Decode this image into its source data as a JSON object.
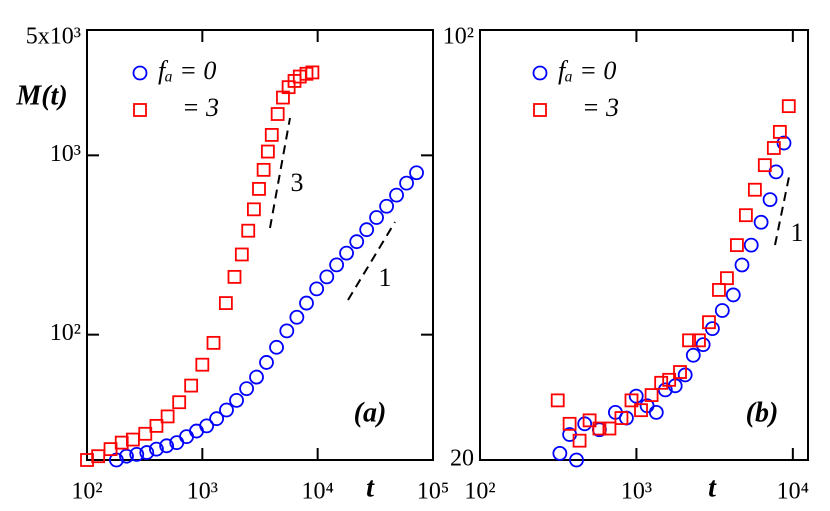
{
  "chart_data": [
    {
      "type": "scatter",
      "panel_label": "(a)",
      "xlabel": "t",
      "ylabel": "M(t)",
      "xscale": "log",
      "yscale": "log",
      "xlim": [
        100,
        100000
      ],
      "ylim": [
        20,
        5000
      ],
      "xticks": [
        {
          "value": 100,
          "label": "10²"
        },
        {
          "value": 1000,
          "label": "10³"
        },
        {
          "value": 10000,
          "label": "10⁴"
        },
        {
          "value": 100000,
          "label": "10⁵"
        }
      ],
      "yticks": [
        {
          "value": 100,
          "label": "10²"
        },
        {
          "value": 1000,
          "label": "10³"
        },
        {
          "value": 5000,
          "label": "5x10³"
        }
      ],
      "annotations": [
        "3",
        "1"
      ],
      "series": [
        {
          "name": "fₐ = 0",
          "color": "#0000ff",
          "marker": "circle",
          "x": [
            180,
            220,
            270,
            330,
            400,
            490,
            600,
            730,
            890,
            1090,
            1330,
            1620,
            1980,
            2420,
            2950,
            3600,
            4400,
            5400,
            6600,
            8000,
            9800,
            12000,
            14600,
            17800,
            21800,
            26600,
            32400,
            39600,
            48300,
            59000,
            72000
          ],
          "values": [
            20,
            21,
            21.5,
            22,
            23,
            24,
            25,
            27,
            29,
            31,
            34,
            38,
            43,
            50,
            58,
            70,
            85,
            105,
            125,
            150,
            180,
            210,
            245,
            285,
            330,
            385,
            450,
            520,
            600,
            700,
            800
          ]
        },
        {
          "name": "= 3",
          "color": "#ff0000",
          "marker": "square",
          "x": [
            100,
            125,
            160,
            200,
            250,
            320,
            400,
            500,
            630,
            800,
            1000,
            1250,
            1600,
            1900,
            2200,
            2500,
            2800,
            3100,
            3400,
            3700,
            4000,
            4500,
            5000,
            5600,
            6300,
            7000,
            8000,
            9000
          ],
          "values": [
            20,
            21,
            23,
            25,
            26,
            28,
            31,
            35,
            42,
            52,
            68,
            90,
            150,
            210,
            280,
            380,
            500,
            650,
            830,
            1050,
            1300,
            1700,
            2100,
            2400,
            2600,
            2750,
            2850,
            2900
          ]
        }
      ]
    },
    {
      "type": "scatter",
      "panel_label": "(b)",
      "xlabel": "t",
      "xscale": "log",
      "yscale": "log",
      "xlim": [
        100,
        12500
      ],
      "ylim": [
        20,
        100
      ],
      "xticks": [
        {
          "value": 100,
          "label": "10²"
        },
        {
          "value": 1000,
          "label": "10³"
        },
        {
          "value": 10000,
          "label": "10⁴"
        }
      ],
      "yticks": [
        20,
        {
          "value": 100,
          "label": "10²"
        }
      ],
      "annotations": [
        "1"
      ],
      "series": [
        {
          "name": "fₐ = 0",
          "color": "#0000ff",
          "marker": "circle",
          "x": [
            324,
            374,
            414,
            467,
            580,
            734,
            863,
            997,
            1170,
            1340,
            1530,
            1770,
            2050,
            2310,
            2670,
            3060,
            3540,
            4160,
            4730,
            5420,
            6270,
            7150,
            7810,
            8780
          ],
          "values": [
            20.5,
            22.0,
            20.0,
            22.9,
            22.4,
            23.9,
            23.4,
            25.4,
            24.5,
            23.9,
            26.0,
            26.4,
            27.5,
            29.6,
            30.8,
            32.7,
            35.0,
            37.1,
            41.5,
            44.7,
            48.7,
            53.0,
            58.8,
            65.5
          ]
        },
        {
          "name": "= 3",
          "color": "#ff0000",
          "marker": "square",
          "x": [
            314,
            374,
            433,
            502,
            580,
            672,
            802,
            930,
            1070,
            1250,
            1440,
            1620,
            1900,
            2170,
            2510,
            2910,
            3370,
            3790,
            4390,
            5010,
            5720,
            6620,
            7560,
            8260,
            9420
          ],
          "values": [
            25.0,
            22.9,
            21.5,
            23.2,
            22.5,
            22.5,
            23.4,
            25.0,
            24.1,
            25.5,
            26.7,
            27.0,
            27.8,
            31.3,
            31.3,
            33.5,
            37.8,
            39.5,
            44.7,
            50.0,
            55.0,
            60.3,
            64.3,
            68.3,
            75.2
          ]
        }
      ]
    }
  ]
}
